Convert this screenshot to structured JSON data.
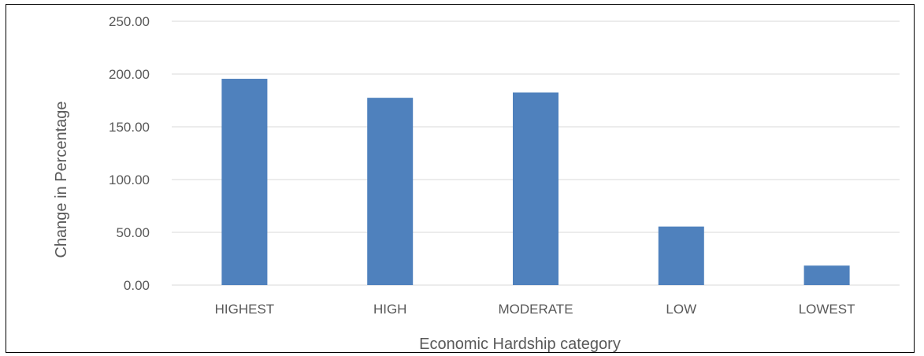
{
  "chart_data": {
    "type": "bar",
    "title": "",
    "xlabel": "Economic Hardship category",
    "ylabel": "Change in Percentage",
    "categories": [
      "HIGHEST",
      "HIGH",
      "MODERATE",
      "LOW",
      "LOWEST"
    ],
    "values": [
      195.5,
      177.5,
      182.5,
      55.5,
      18.5
    ],
    "ylim": [
      0,
      250
    ],
    "yticks": [
      "0.00",
      "50.00",
      "100.00",
      "150.00",
      "200.00",
      "250.00"
    ],
    "grid": true,
    "legend": "none",
    "bar_color": "#4f81bd",
    "grid_color": "#d9d9d9"
  }
}
